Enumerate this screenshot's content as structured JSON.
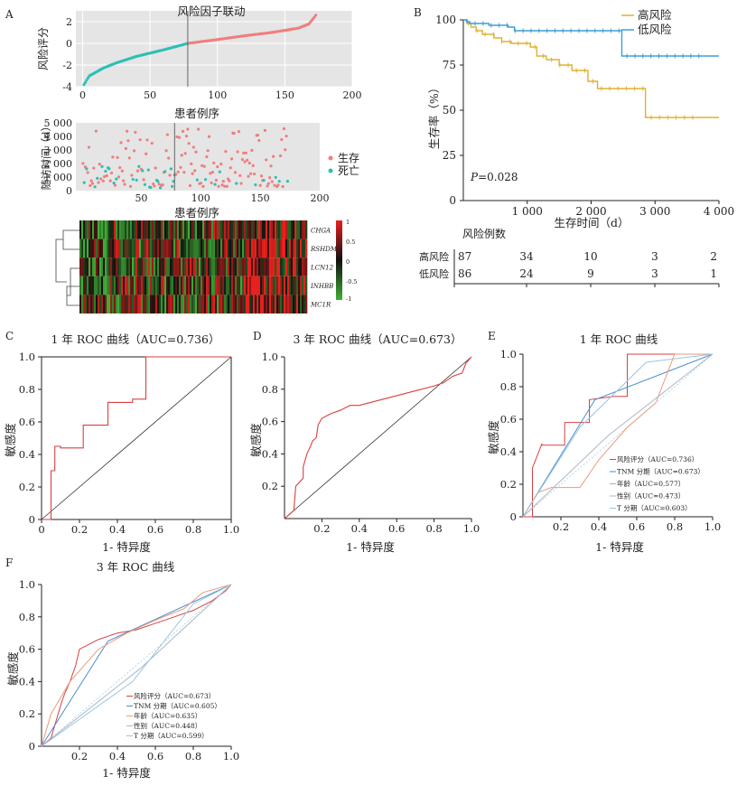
{
  "colors": {
    "high_risk": "#E0B034",
    "low_risk": "#3D9FD4",
    "survive": "#F07E7E",
    "dead": "#2DBFB5",
    "roc_line": "#D94040",
    "panel_bg": "#E5E5E5",
    "heat_high": "#E8201E",
    "heat_mid": "#111111",
    "heat_low": "#3FAE34",
    "risk_score": "#5DA3C9",
    "tnm": "#4A8FD0",
    "age": "#E89A7C",
    "sex": "#A8B7C8",
    "t_stage": "#9CC5E0"
  },
  "panel_labels": {
    "a": "A",
    "b": "B",
    "c": "C",
    "d": "D",
    "e": "E",
    "f": "F"
  },
  "chart_data": [
    {
      "id": "A1",
      "type": "scatter",
      "title": "风险因子联动",
      "xlabel": "",
      "ylabel": "风险评分",
      "xlim": [
        -5,
        200
      ],
      "ylim": [
        -4,
        3
      ],
      "xticks": [
        "0",
        "50",
        "100",
        "150",
        "200"
      ],
      "yticks": [
        "-4",
        "-2",
        "0",
        "2"
      ],
      "cutoff_x": 78,
      "n": 173,
      "anchors_x": [
        1,
        5,
        15,
        25,
        40,
        60,
        78,
        100,
        120,
        140,
        160,
        168,
        173
      ],
      "anchors_y": [
        -3.8,
        -3.0,
        -2.3,
        -1.8,
        -1.2,
        -0.6,
        0.0,
        0.35,
        0.7,
        1.0,
        1.4,
        1.8,
        2.6
      ]
    },
    {
      "id": "A2",
      "type": "scatter",
      "title": "患者例序",
      "xlabel": "患者例序",
      "ylabel": "随访时间（d）",
      "xlim": [
        -5,
        200
      ],
      "ylim": [
        0,
        5000
      ],
      "xticks": [
        "50",
        "100",
        "150",
        "200"
      ],
      "yticks": [
        "0",
        "1 000",
        "2 000",
        "3 000",
        "4 000",
        "5 000"
      ],
      "cutoff_x": 78,
      "legend": [
        "生存",
        "死亡"
      ]
    },
    {
      "id": "A3",
      "type": "heatmap",
      "rows": [
        "CHGA",
        "RSHDML",
        "LCN12",
        "INHBB",
        "MC1R"
      ],
      "colorbar_ticks": [
        "1",
        "0.5",
        "0",
        "-0.5",
        "-1"
      ]
    },
    {
      "id": "B",
      "type": "line",
      "title": "",
      "xlabel": "生存时间（d）",
      "ylabel": "生存率（%）",
      "xlim": [
        0,
        4000
      ],
      "ylim": [
        0,
        100
      ],
      "xticks": [
        "1 000",
        "2 000",
        "3 000",
        "4 000"
      ],
      "yticks": [
        "0",
        "25",
        "50",
        "75",
        "100"
      ],
      "p_value_prefix": "P",
      "p_value": "=0.028",
      "series": [
        {
          "name": "高风险",
          "x": [
            0,
            60,
            120,
            200,
            300,
            480,
            600,
            750,
            1050,
            1150,
            1300,
            1500,
            1700,
            1950,
            2100,
            2400,
            2800,
            2850,
            4000
          ],
          "y": [
            100,
            98,
            96,
            94,
            92,
            90,
            88,
            87,
            85,
            80,
            78,
            75,
            72,
            66,
            62,
            62,
            62,
            46,
            46
          ]
        },
        {
          "name": "低风险",
          "x": [
            0,
            50,
            100,
            400,
            700,
            800,
            2450,
            2480,
            4000
          ],
          "y": [
            100,
            99,
            98,
            97,
            96,
            94,
            94,
            80,
            80
          ]
        }
      ],
      "risk_table": {
        "title": "风险例数",
        "rows": [
          {
            "label": "高风险",
            "values": [
              "87",
              "34",
              "10",
              "3",
              "2"
            ]
          },
          {
            "label": "低风险",
            "values": [
              "86",
              "24",
              "9",
              "3",
              "1"
            ]
          }
        ]
      }
    },
    {
      "id": "C",
      "type": "line",
      "title": "1 年 ROC 曲线（AUC=0.736）",
      "xlabel": "1- 特异度",
      "ylabel": "敏感度",
      "xlim": [
        0,
        1
      ],
      "ylim": [
        0,
        1
      ],
      "xticks": [
        "0",
        "0.2",
        "0.4",
        "0.6",
        "0.8",
        "1.0"
      ],
      "yticks": [
        "0",
        "0.2",
        "0.4",
        "0.6",
        "0.8",
        "1.0"
      ],
      "series": [
        {
          "name": "ROC",
          "x": [
            0,
            0.05,
            0.05,
            0.07,
            0.07,
            0.1,
            0.1,
            0.22,
            0.22,
            0.28,
            0.28,
            0.35,
            0.35,
            0.48,
            0.48,
            0.55,
            0.55,
            0.6,
            0.6,
            1.0
          ],
          "y": [
            0,
            0,
            0.3,
            0.3,
            0.45,
            0.45,
            0.44,
            0.44,
            0.58,
            0.58,
            0.58,
            0.58,
            0.72,
            0.72,
            0.74,
            0.74,
            1.0,
            1.0,
            1.0,
            1.0
          ]
        }
      ]
    },
    {
      "id": "D",
      "type": "line",
      "title": "3 年 ROC 曲线（AUC=0.673）",
      "xlabel": "1- 特异度",
      "ylabel": "敏感度",
      "xlim": [
        0,
        1
      ],
      "ylim": [
        0,
        1
      ],
      "xticks": [
        "0.2",
        "0.4",
        "0.6",
        "0.8",
        "1.0"
      ],
      "yticks": [
        "0.2",
        "0.4",
        "0.6",
        "0.8",
        "1.0"
      ],
      "series": [
        {
          "name": "ROC",
          "x": [
            0,
            0.02,
            0.05,
            0.06,
            0.1,
            0.1,
            0.12,
            0.14,
            0.15,
            0.17,
            0.18,
            0.2,
            0.25,
            0.3,
            0.35,
            0.4,
            0.5,
            0.6,
            0.7,
            0.8,
            0.85,
            0.9,
            0.95,
            0.97,
            1.0
          ],
          "y": [
            0,
            0.02,
            0.05,
            0.2,
            0.25,
            0.32,
            0.4,
            0.45,
            0.48,
            0.5,
            0.58,
            0.62,
            0.65,
            0.67,
            0.7,
            0.7,
            0.73,
            0.76,
            0.79,
            0.82,
            0.84,
            0.88,
            0.9,
            0.96,
            1.0
          ]
        }
      ]
    },
    {
      "id": "E",
      "type": "line",
      "title": "1 年 ROC 曲线",
      "xlabel": "1- 特异度",
      "ylabel": "敏感度",
      "xlim": [
        0,
        1
      ],
      "ylim": [
        0,
        1
      ],
      "xticks": [
        "0.2",
        "0.4",
        "0.6",
        "0.8",
        "1.0"
      ],
      "yticks": [
        "0",
        "0.2",
        "0.4",
        "0.6",
        "0.8",
        "1.0"
      ],
      "series": [
        {
          "name": "风险评分（AUC=0.736）",
          "x": [
            0,
            0.05,
            0.05,
            0.1,
            0.1,
            0.22,
            0.22,
            0.35,
            0.35,
            0.48,
            0.55,
            0.55,
            1.0
          ],
          "y": [
            0,
            0,
            0.3,
            0.45,
            0.44,
            0.44,
            0.58,
            0.58,
            0.72,
            0.74,
            0.74,
            1.0,
            1.0
          ]
        },
        {
          "name": "TNM 分期（AUC=0.673）",
          "x": [
            0,
            0.38,
            1.0
          ],
          "y": [
            0,
            0.72,
            1.0
          ]
        },
        {
          "name": "年龄（AUC=0.577）",
          "x": [
            0,
            0.08,
            0.15,
            0.3,
            0.4,
            0.55,
            0.7,
            0.8,
            1.0
          ],
          "y": [
            0,
            0.15,
            0.18,
            0.18,
            0.35,
            0.55,
            0.7,
            1.0,
            1.0
          ]
        },
        {
          "name": "性别（AUC=0.473）",
          "x": [
            0,
            0.45,
            1.0
          ],
          "y": [
            0,
            0.5,
            1.0
          ]
        },
        {
          "name": "T 分期（AUC=0.603）",
          "x": [
            0,
            0.3,
            0.65,
            1.0
          ],
          "y": [
            0,
            0.55,
            0.95,
            1.0
          ]
        }
      ]
    },
    {
      "id": "F",
      "type": "line",
      "title": "3 年 ROC 曲线",
      "xlabel": "1- 特异度",
      "ylabel": "敏感度",
      "xlim": [
        0,
        1
      ],
      "ylim": [
        0,
        1
      ],
      "xticks": [
        "0.2",
        "0.4",
        "0.6",
        "0.8",
        "1.0"
      ],
      "yticks": [
        "0",
        "0.2",
        "0.4",
        "0.6",
        "0.8",
        "1.0"
      ],
      "series": [
        {
          "name": "风险评分（AUC=0.673）",
          "x": [
            0,
            0.05,
            0.1,
            0.12,
            0.15,
            0.18,
            0.2,
            0.3,
            0.4,
            0.5,
            0.6,
            0.7,
            0.8,
            0.9,
            0.97,
            1.0
          ],
          "y": [
            0,
            0.05,
            0.25,
            0.32,
            0.4,
            0.5,
            0.6,
            0.66,
            0.7,
            0.72,
            0.76,
            0.8,
            0.84,
            0.9,
            0.96,
            1.0
          ]
        },
        {
          "name": "TNM 分期（AUC=0.605）",
          "x": [
            0,
            0.35,
            1.0
          ],
          "y": [
            0,
            0.65,
            1.0
          ]
        },
        {
          "name": "年龄（AUC=0.635）",
          "x": [
            0,
            0.05,
            0.15,
            0.3,
            0.45,
            0.6,
            0.75,
            0.85,
            1.0
          ],
          "y": [
            0,
            0.2,
            0.4,
            0.6,
            0.7,
            0.78,
            0.85,
            0.95,
            1.0
          ]
        },
        {
          "name": "性别（AUC=0.448）",
          "x": [
            0,
            0.52,
            1.0
          ],
          "y": [
            0,
            0.48,
            1.0
          ]
        },
        {
          "name": "T 分期（AUC=0.599）",
          "x": [
            0,
            0.48,
            0.8,
            1.0
          ],
          "y": [
            0,
            0.4,
            0.88,
            1.0
          ]
        }
      ]
    }
  ]
}
